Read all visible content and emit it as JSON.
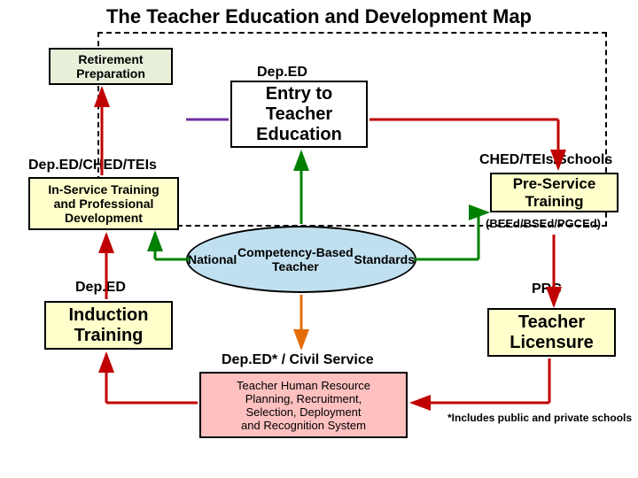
{
  "title": "The Teacher Education and Development Map",
  "boxes": {
    "retirement": {
      "text": "Retirement\nPreparation",
      "bg": "#e8f0da",
      "font_size": 14
    },
    "entry": {
      "text": "Entry to\nTeacher\nEducation",
      "bg": "#ffffff",
      "font_size": 20
    },
    "inservice": {
      "text": "In-Service Training\nand Professional\nDevelopment",
      "bg": "#ffffcc",
      "font_size": 14
    },
    "preservice": {
      "text": "Pre-Service\nTraining",
      "bg": "#ffffcc",
      "font_size": 17
    },
    "induction": {
      "text": "Induction\nTraining",
      "bg": "#ffffcc",
      "font_size": 20
    },
    "licensure": {
      "text": "Teacher\nLicensure",
      "bg": "#ffffcc",
      "font_size": 20
    },
    "hr": {
      "text": "Teacher Human Resource\nPlanning, Recruitment,\nSelection, Deployment\nand Recognition System",
      "bg": "#ffc0c0",
      "font_size": 13
    }
  },
  "ellipse": {
    "ncbts": {
      "text": "National\nCompetency-Based Teacher\nStandards",
      "bg": "#c0e0f0",
      "font_size": 14
    }
  },
  "labels": {
    "deped_top": "Dep.ED",
    "deped_ched_teis": "Dep.ED/CHED/TEIs",
    "ched_teis_schools": "CHED/TEIs/Schools",
    "degrees": "(BEEd/BSEd/PGCEd)",
    "deped_left": "Dep.ED",
    "prc": "PRC",
    "civil": "Dep.ED* / Civil Service"
  },
  "footnote": "*Includes public and private schools",
  "colors": {
    "arrow_red": "#c00000",
    "arrow_purple": "#7030a0",
    "arrow_green": "#008000",
    "arrow_orange": "#e46c0a"
  }
}
